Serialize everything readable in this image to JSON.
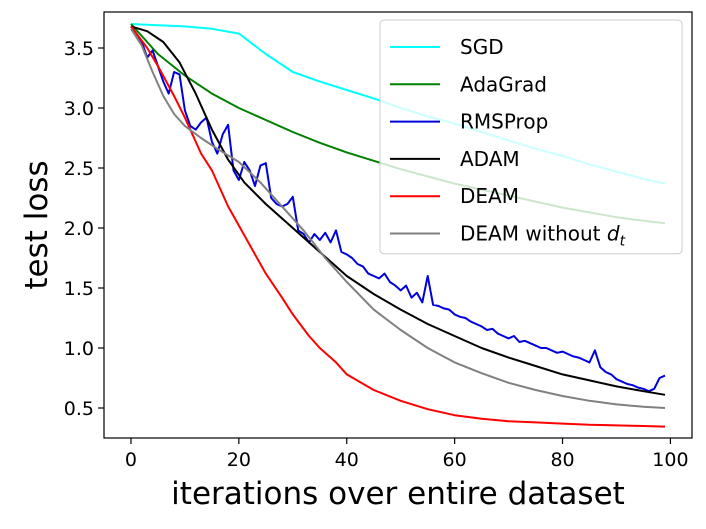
{
  "chart_data": {
    "type": "line",
    "title": "",
    "xlabel": "iterations over entire dataset",
    "ylabel": "test loss",
    "xlim": [
      -5,
      104
    ],
    "ylim": [
      0.25,
      3.8
    ],
    "x_ticks": [
      0,
      20,
      40,
      60,
      80,
      100
    ],
    "y_ticks": [
      0.5,
      1.0,
      1.5,
      2.0,
      2.5,
      3.0,
      3.5
    ],
    "x_tick_labels": [
      "0",
      "20",
      "40",
      "60",
      "80",
      "100"
    ],
    "y_tick_labels": [
      "0.5",
      "1.0",
      "1.5",
      "2.0",
      "2.5",
      "3.0",
      "3.5"
    ],
    "grid": false,
    "legend_position": "top-right",
    "series": [
      {
        "name": "SGD",
        "label": "SGD",
        "color": "#00ffff",
        "x": [
          0,
          5,
          10,
          15,
          20,
          25,
          30,
          35,
          40,
          45,
          50,
          55,
          60,
          65,
          70,
          75,
          80,
          85,
          90,
          95,
          99
        ],
        "values": [
          3.7,
          3.69,
          3.68,
          3.66,
          3.62,
          3.45,
          3.3,
          3.22,
          3.15,
          3.08,
          3.0,
          2.93,
          2.87,
          2.8,
          2.73,
          2.66,
          2.6,
          2.53,
          2.47,
          2.41,
          2.37
        ]
      },
      {
        "name": "AdaGrad",
        "label": "AdaGrad",
        "color": "#008000",
        "x": [
          0,
          5,
          10,
          15,
          20,
          25,
          30,
          35,
          40,
          45,
          50,
          55,
          60,
          65,
          70,
          75,
          80,
          85,
          90,
          95,
          99
        ],
        "values": [
          3.7,
          3.45,
          3.27,
          3.12,
          3.0,
          2.9,
          2.8,
          2.71,
          2.63,
          2.56,
          2.49,
          2.43,
          2.37,
          2.32,
          2.27,
          2.22,
          2.17,
          2.13,
          2.09,
          2.06,
          2.04
        ]
      },
      {
        "name": "RMSProp",
        "label": "RMSProp",
        "color": "#0000dd",
        "x": [
          0,
          1,
          2,
          3,
          4,
          5,
          6,
          7,
          8,
          9,
          10,
          11,
          12,
          13,
          14,
          15,
          16,
          17,
          18,
          19,
          20,
          21,
          22,
          23,
          24,
          25,
          26,
          27,
          28,
          29,
          30,
          31,
          32,
          33,
          34,
          35,
          36,
          37,
          38,
          39,
          40,
          41,
          42,
          43,
          44,
          45,
          46,
          47,
          48,
          49,
          50,
          51,
          52,
          53,
          54,
          55,
          56,
          57,
          58,
          59,
          60,
          61,
          62,
          63,
          64,
          65,
          66,
          67,
          68,
          69,
          70,
          71,
          72,
          73,
          74,
          75,
          76,
          77,
          78,
          79,
          80,
          81,
          82,
          83,
          84,
          85,
          86,
          87,
          88,
          89,
          90,
          91,
          92,
          93,
          94,
          95,
          96,
          97,
          98,
          99
        ],
        "values": [
          3.68,
          3.62,
          3.55,
          3.42,
          3.48,
          3.35,
          3.22,
          3.12,
          3.3,
          3.28,
          2.98,
          2.85,
          2.82,
          2.88,
          2.92,
          2.72,
          2.62,
          2.78,
          2.86,
          2.48,
          2.4,
          2.55,
          2.48,
          2.35,
          2.52,
          2.54,
          2.25,
          2.2,
          2.18,
          2.2,
          2.26,
          1.98,
          1.95,
          1.88,
          1.95,
          1.9,
          1.96,
          1.88,
          1.98,
          1.8,
          1.78,
          1.75,
          1.7,
          1.68,
          1.62,
          1.6,
          1.58,
          1.62,
          1.55,
          1.52,
          1.48,
          1.52,
          1.42,
          1.46,
          1.38,
          1.6,
          1.36,
          1.35,
          1.33,
          1.32,
          1.28,
          1.26,
          1.25,
          1.22,
          1.2,
          1.18,
          1.15,
          1.16,
          1.12,
          1.1,
          1.08,
          1.1,
          1.05,
          1.06,
          1.04,
          1.02,
          1.0,
          1.0,
          0.98,
          0.96,
          0.97,
          0.95,
          0.93,
          0.92,
          0.9,
          0.88,
          0.98,
          0.84,
          0.8,
          0.78,
          0.74,
          0.72,
          0.7,
          0.69,
          0.67,
          0.66,
          0.64,
          0.66,
          0.75,
          0.77
        ]
      },
      {
        "name": "ADAM",
        "label": "ADAM",
        "color": "#000000",
        "x": [
          0,
          3,
          6,
          9,
          12,
          15,
          18,
          21,
          25,
          30,
          35,
          40,
          45,
          50,
          55,
          60,
          65,
          70,
          75,
          80,
          85,
          90,
          95,
          99
        ],
        "values": [
          3.68,
          3.64,
          3.55,
          3.38,
          3.12,
          2.82,
          2.57,
          2.38,
          2.2,
          2.0,
          1.8,
          1.6,
          1.45,
          1.32,
          1.2,
          1.1,
          1.0,
          0.92,
          0.85,
          0.78,
          0.73,
          0.68,
          0.64,
          0.61
        ]
      },
      {
        "name": "DEAM",
        "label": "DEAM",
        "color": "#ff0000",
        "x": [
          0,
          3,
          5,
          8,
          10,
          13,
          15,
          18,
          20,
          23,
          25,
          28,
          30,
          33,
          35,
          38,
          40,
          45,
          50,
          55,
          60,
          65,
          70,
          75,
          80,
          85,
          90,
          95,
          99
        ],
        "values": [
          3.68,
          3.5,
          3.35,
          3.1,
          2.92,
          2.62,
          2.48,
          2.18,
          2.02,
          1.78,
          1.62,
          1.42,
          1.28,
          1.1,
          1.0,
          0.88,
          0.78,
          0.65,
          0.56,
          0.49,
          0.44,
          0.41,
          0.39,
          0.38,
          0.37,
          0.36,
          0.355,
          0.35,
          0.345
        ]
      },
      {
        "name": "DEAM without d_t",
        "label": "DEAM without",
        "label_math": "d",
        "label_sub": "t",
        "color": "#808080",
        "x": [
          0,
          2,
          4,
          6,
          8,
          10,
          13,
          16,
          20,
          24,
          28,
          32,
          36,
          40,
          45,
          50,
          55,
          60,
          65,
          70,
          75,
          80,
          85,
          90,
          95,
          99
        ],
        "values": [
          3.66,
          3.52,
          3.3,
          3.1,
          2.95,
          2.85,
          2.75,
          2.66,
          2.55,
          2.38,
          2.18,
          1.98,
          1.75,
          1.55,
          1.32,
          1.15,
          1.0,
          0.88,
          0.79,
          0.71,
          0.65,
          0.6,
          0.56,
          0.53,
          0.51,
          0.5
        ]
      }
    ]
  }
}
